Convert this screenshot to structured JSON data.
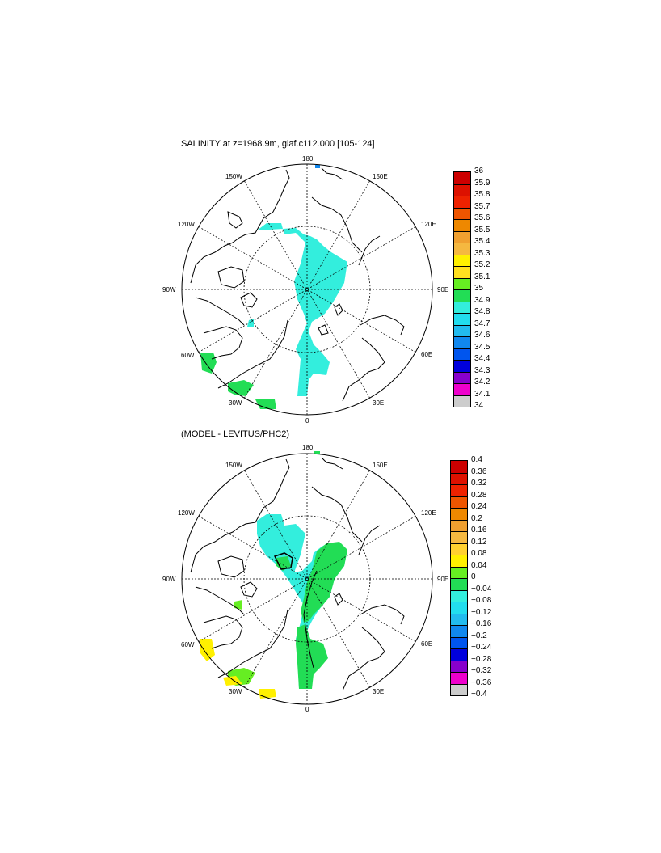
{
  "panels": [
    {
      "title": "SALINITY at z=1968.9m, giaf.c112.000 [105-124]",
      "lon_labels": [
        "180",
        "150E",
        "120E",
        "90E",
        "60E",
        "30E",
        "0",
        "30W",
        "60W",
        "90W",
        "120W",
        "150W"
      ],
      "colorbar": {
        "labels": [
          "36",
          "35.9",
          "35.8",
          "35.7",
          "35.6",
          "35.5",
          "35.4",
          "35.3",
          "35.2",
          "35.1",
          "35",
          "34.9",
          "34.8",
          "34.7",
          "34.6",
          "34.5",
          "34.4",
          "34.3",
          "34.2",
          "34.1",
          "34"
        ],
        "colors": [
          "#cc0000",
          "#dd1100",
          "#ee2200",
          "#ee5500",
          "#ee8800",
          "#f0a030",
          "#f5b840",
          "#fff000",
          "#ffe020",
          "#66ee22",
          "#22dd55",
          "#33eedd",
          "#22ddee",
          "#22bbee",
          "#1188ee",
          "#0055ee",
          "#0000dd",
          "#8800cc",
          "#ee00cc",
          "#cccccc",
          "#666666"
        ]
      }
    },
    {
      "title": "(MODEL - LEVITUS/PHC2)",
      "lon_labels": [
        "180",
        "150E",
        "120E",
        "90E",
        "60E",
        "30E",
        "0",
        "30W",
        "60W",
        "90W",
        "120W",
        "150W"
      ],
      "colorbar": {
        "labels": [
          "0.4",
          "0.36",
          "0.32",
          "0.28",
          "0.24",
          "0.2",
          "0.16",
          "0.12",
          "0.08",
          "0.04",
          "0",
          "−0.04",
          "−0.08",
          "−0.12",
          "−0.16",
          "−0.2",
          "−0.24",
          "−0.28",
          "−0.32",
          "−0.36",
          "−0.4"
        ],
        "colors": [
          "#cc0000",
          "#dd1100",
          "#ee2200",
          "#ee5500",
          "#ee8800",
          "#f0a030",
          "#f5b840",
          "#ffd030",
          "#fff000",
          "#66ee22",
          "#22dd55",
          "#33eedd",
          "#22ddee",
          "#22bbee",
          "#1188ee",
          "#0055ee",
          "#0000dd",
          "#8800cc",
          "#ee00cc",
          "#cccccc",
          "#666666"
        ]
      }
    }
  ]
}
